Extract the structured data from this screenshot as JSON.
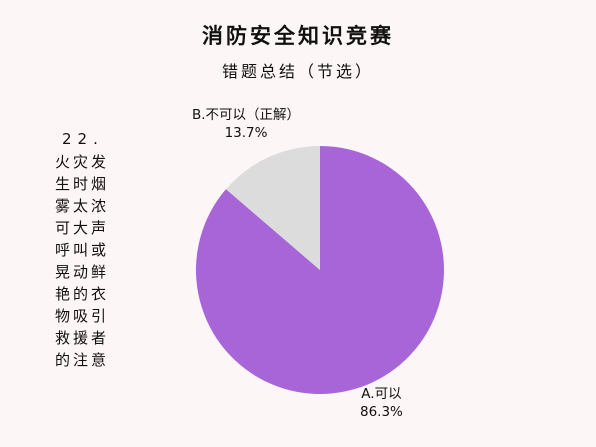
{
  "header": {
    "title": "消防安全知识竞赛",
    "subtitle": "错题总结（节选）"
  },
  "question": {
    "number": "22.",
    "text": "火灾发生时烟雾太浓可大声呼叫或晃动鲜艳的衣物吸引救援者的注意"
  },
  "chart_data": {
    "type": "pie",
    "title": "",
    "slices": [
      {
        "name": "A.可以",
        "label": "86.3%",
        "value": 86.3,
        "color": "#a865d8"
      },
      {
        "name": "B.不可以（正解）",
        "label": "13.7%",
        "value": 13.7,
        "color": "#dcdcdc"
      }
    ],
    "start_angle_deg": 0,
    "direction": "clockwise"
  }
}
